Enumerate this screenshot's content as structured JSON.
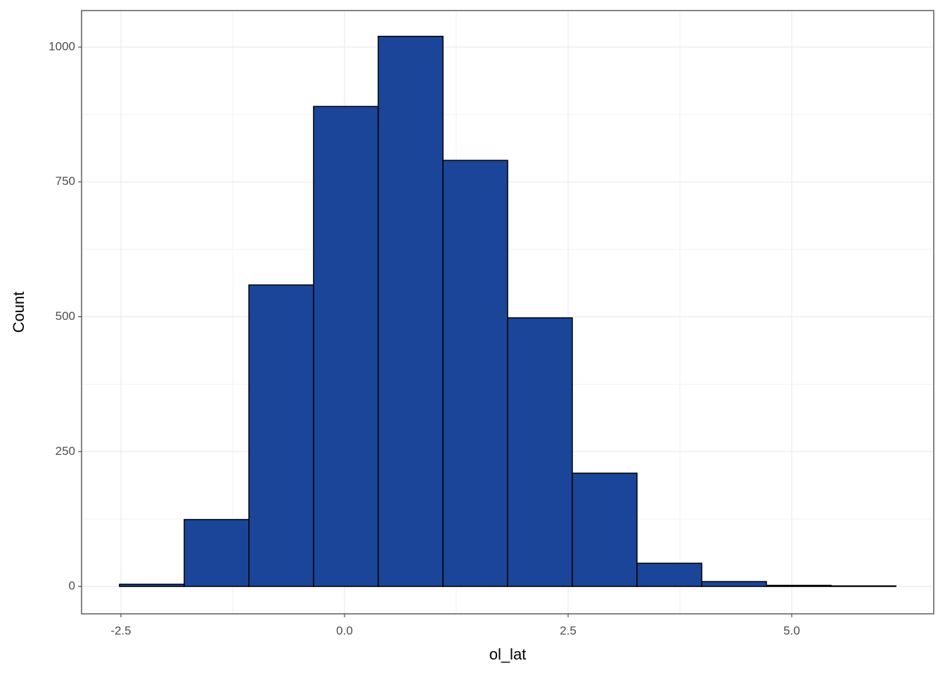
{
  "chart_data": {
    "type": "histogram",
    "x_label": "ol_lat",
    "y_label": "Count",
    "bins": [
      -2.516,
      -1.792,
      -1.069,
      -0.346,
      0.377,
      1.101,
      1.824,
      2.547,
      3.27,
      3.994,
      4.717,
      5.44,
      6.164
    ],
    "counts": [
      4,
      124,
      559,
      890,
      1020,
      790,
      498,
      210,
      43,
      9,
      2,
      1
    ],
    "color": "#1a4599",
    "edge_color": "#000000",
    "xlim": [
      -2.94,
      6.588
    ],
    "ylim": [
      -50.8,
      1067.8
    ],
    "xticks": [
      {
        "value": -2.5,
        "label": "-2.5"
      },
      {
        "value": 0,
        "label": "0.0"
      },
      {
        "value": 2.5,
        "label": "2.5"
      },
      {
        "value": 5,
        "label": "5.0"
      }
    ],
    "yticks": [
      0,
      250,
      500,
      750,
      1000
    ],
    "grid": true
  }
}
